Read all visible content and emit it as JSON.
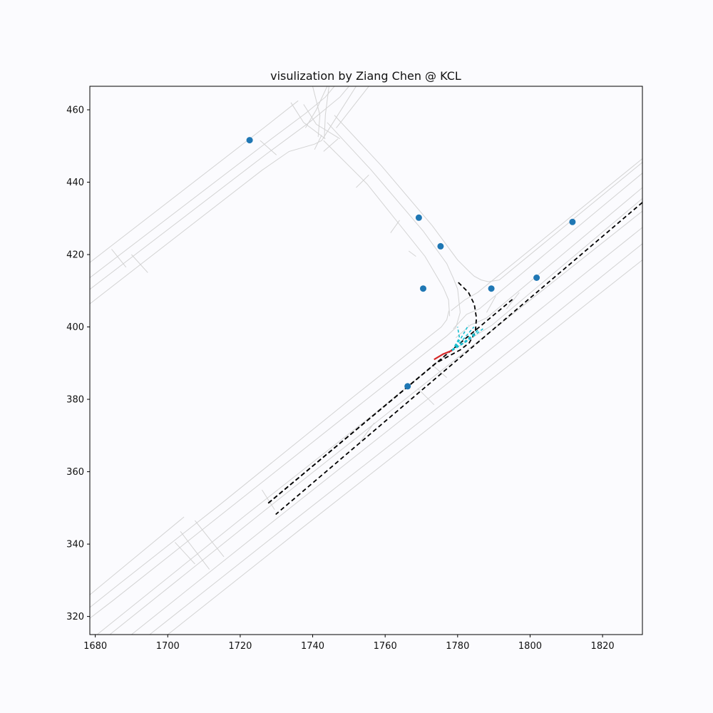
{
  "chart_data": {
    "type": "scatter",
    "title": "visulization by Ziang Chen @ KCL",
    "xlabel": "",
    "ylabel": "",
    "xlim": [
      1678.5,
      1831.0
    ],
    "ylim": [
      315.0,
      466.5
    ],
    "x_ticks": [
      1680,
      1700,
      1720,
      1740,
      1760,
      1780,
      1800,
      1820
    ],
    "y_ticks": [
      320,
      340,
      360,
      380,
      400,
      420,
      440,
      460
    ],
    "grid": false,
    "legend": "none",
    "colors": {
      "background": "#fbfbfe",
      "plot_background": "#fbfbfe",
      "lane": "#d3d3d3",
      "agent": "#1f77b4",
      "route": "#000000",
      "prediction": "#17becf",
      "history": "#d62728"
    },
    "agents": [
      {
        "x": 1722.6,
        "y": 451.6
      },
      {
        "x": 1769.3,
        "y": 430.2
      },
      {
        "x": 1775.3,
        "y": 422.3
      },
      {
        "x": 1770.5,
        "y": 410.6
      },
      {
        "x": 1789.3,
        "y": 410.6
      },
      {
        "x": 1801.8,
        "y": 413.6
      },
      {
        "x": 1811.7,
        "y": 429.0
      },
      {
        "x": 1766.2,
        "y": 383.6
      }
    ],
    "route_lines": [
      {
        "points": [
          [
            1780.2,
            412.3
          ],
          [
            1783.0,
            409.5
          ],
          [
            1784.6,
            406.3
          ],
          [
            1785.2,
            402.5
          ],
          [
            1784.9,
            398.6
          ],
          [
            1783.2,
            395.6
          ],
          [
            1780.8,
            393.7
          ],
          [
            1774.0,
            390.0
          ],
          [
            1727.6,
            351.2
          ]
        ]
      },
      {
        "points": [
          [
            1795.1,
            407.6
          ],
          [
            1727.6,
            351.2
          ]
        ]
      },
      {
        "points": [
          [
            1831.0,
            434.4
          ],
          [
            1729.8,
            348.2
          ]
        ]
      }
    ],
    "lane_lines": [
      {
        "points": [
          [
            1678.5,
            417.8
          ],
          [
            1726.5,
            455.0
          ],
          [
            1736.0,
            462.5
          ]
        ]
      },
      {
        "points": [
          [
            1678.5,
            413.6
          ],
          [
            1728.0,
            451.5
          ],
          [
            1738.0,
            459.0
          ],
          [
            1743.5,
            463.5
          ],
          [
            1746.0,
            466.5
          ]
        ]
      },
      {
        "points": [
          [
            1678.5,
            410.4
          ],
          [
            1727.0,
            447.6
          ],
          [
            1739.0,
            456.5
          ],
          [
            1747.5,
            463.5
          ],
          [
            1750.0,
            466.5
          ]
        ]
      },
      {
        "points": [
          [
            1678.5,
            406.4
          ],
          [
            1726.0,
            443.3
          ],
          [
            1733.5,
            448.5
          ],
          [
            1740.5,
            450.5
          ],
          [
            1742.5,
            451.5
          ],
          [
            1745.0,
            455.5
          ],
          [
            1752.0,
            466.5
          ]
        ]
      },
      {
        "points": [
          [
            1740.0,
            466.5
          ],
          [
            1742.0,
            458.5
          ],
          [
            1741.5,
            452.5
          ]
        ]
      },
      {
        "points": [
          [
            1744.5,
            466.5
          ],
          [
            1743.5,
            458.5
          ],
          [
            1743.2,
            452.0
          ]
        ]
      },
      {
        "points": [
          [
            1755.5,
            466.5
          ],
          [
            1746.5,
            455.0
          ]
        ]
      },
      {
        "points": [
          [
            1738.0,
            455.0
          ],
          [
            1741.0,
            460.0
          ],
          [
            1744.0,
            466.5
          ]
        ]
      },
      {
        "points": [
          [
            1747.5,
            452.0
          ],
          [
            1741.0,
            456.0
          ],
          [
            1737.5,
            461.5
          ]
        ]
      },
      {
        "points": [
          [
            1743.5,
            452.0
          ],
          [
            1737.5,
            456.5
          ],
          [
            1734.0,
            462.0
          ]
        ]
      },
      {
        "points": [
          [
            1743.0,
            448.5
          ],
          [
            1747.0,
            452.0
          ]
        ]
      },
      {
        "points": [
          [
            1744.0,
            456.5
          ],
          [
            1756.0,
            443.5
          ],
          [
            1770.5,
            426.5
          ],
          [
            1777.0,
            417.5
          ],
          [
            1778.8,
            413.5
          ],
          [
            1780.0,
            410.5
          ],
          [
            1780.7,
            404.0
          ],
          [
            1779.5,
            399.8
          ],
          [
            1777.0,
            397.5
          ],
          [
            1753.0,
            378.5
          ],
          [
            1716.5,
            349.5
          ],
          [
            1685.0,
            324.5
          ],
          [
            1678.5,
            319.5
          ]
        ]
      },
      {
        "points": [
          [
            1746.0,
            458.5
          ],
          [
            1759.0,
            444.5
          ],
          [
            1773.0,
            428.0
          ],
          [
            1780.0,
            418.5
          ],
          [
            1783.0,
            415.5
          ],
          [
            1784.6,
            414.0
          ],
          [
            1786.5,
            413.0
          ],
          [
            1788.5,
            412.5
          ],
          [
            1791.5,
            413.0
          ],
          [
            1831.0,
            445.5
          ]
        ]
      },
      {
        "points": [
          [
            1743.0,
            451.5
          ],
          [
            1755.0,
            439.5
          ],
          [
            1771.0,
            419.5
          ],
          [
            1776.0,
            411.0
          ],
          [
            1777.5,
            407.5
          ],
          [
            1777.8,
            403.0
          ]
        ]
      },
      {
        "points": [
          [
            1778.2,
            404.5
          ],
          [
            1782.0,
            407.5
          ],
          [
            1785.5,
            409.5
          ],
          [
            1831.0,
            446.5
          ]
        ]
      },
      {
        "points": [
          [
            1778.8,
            399.5
          ],
          [
            1782.5,
            403.5
          ],
          [
            1786.0,
            405.0
          ],
          [
            1831.0,
            442.5
          ]
        ]
      },
      {
        "points": [
          [
            1779.5,
            397.0
          ],
          [
            1783.5,
            400.5
          ],
          [
            1788.0,
            402.5
          ],
          [
            1831.0,
            438.5
          ]
        ]
      },
      {
        "points": [
          [
            1780.0,
            394.5
          ],
          [
            1789.5,
            400.5
          ],
          [
            1831.0,
            435.5
          ]
        ]
      },
      {
        "points": [
          [
            1678.5,
            322.5
          ],
          [
            1686.0,
            328.5
          ],
          [
            1714.5,
            351.0
          ],
          [
            1751.0,
            380.5
          ],
          [
            1775.5,
            400.0
          ],
          [
            1777.0,
            402.0
          ],
          [
            1777.6,
            404.5
          ]
        ]
      },
      {
        "points": [
          [
            1680.5,
            315.0
          ],
          [
            1721.5,
            348.0
          ],
          [
            1757.0,
            376.0
          ],
          [
            1779.5,
            394.5
          ]
        ]
      },
      {
        "points": [
          [
            1684.0,
            315.0
          ],
          [
            1727.0,
            349.5
          ],
          [
            1780.0,
            391.5
          ],
          [
            1831.0,
            432.0
          ]
        ]
      },
      {
        "points": [
          [
            1690.0,
            315.0
          ],
          [
            1730.0,
            347.0
          ],
          [
            1783.0,
            389.0
          ],
          [
            1831.0,
            427.5
          ]
        ]
      },
      {
        "points": [
          [
            1695.0,
            315.0
          ],
          [
            1733.5,
            345.5
          ],
          [
            1787.0,
            387.5
          ],
          [
            1831.0,
            423.0
          ]
        ]
      },
      {
        "points": [
          [
            1700.0,
            315.0
          ],
          [
            1736.5,
            344.0
          ],
          [
            1790.5,
            386.5
          ],
          [
            1831.0,
            418.5
          ]
        ]
      },
      {
        "points": [
          [
            1678.5,
            326.0
          ],
          [
            1704.5,
            347.5
          ]
        ]
      },
      {
        "points": [
          [
            1703.5,
            343.5
          ],
          [
            1711.5,
            333.0
          ]
        ]
      },
      {
        "points": [
          [
            1707.5,
            346.5
          ],
          [
            1715.5,
            336.5
          ]
        ]
      },
      {
        "points": [
          [
            1702.0,
            340.5
          ],
          [
            1707.5,
            334.5
          ]
        ]
      },
      {
        "points": [
          [
            1726.0,
            355.0
          ],
          [
            1729.5,
            349.5
          ]
        ]
      },
      {
        "points": [
          [
            1752.5,
            367.5
          ],
          [
            1757.0,
            373.5
          ]
        ]
      },
      {
        "points": [
          [
            1769.0,
            383.0
          ],
          [
            1773.5,
            378.5
          ]
        ]
      },
      {
        "points": [
          [
            1773.0,
            389.5
          ],
          [
            1777.0,
            386.0
          ]
        ]
      },
      {
        "points": [
          [
            1793.5,
            405.0
          ],
          [
            1797.0,
            409.5
          ]
        ]
      },
      {
        "points": [
          [
            1788.0,
            404.0
          ],
          [
            1790.5,
            408.5
          ]
        ]
      },
      {
        "points": [
          [
            1684.5,
            421.5
          ],
          [
            1688.5,
            416.5
          ]
        ]
      },
      {
        "points": [
          [
            1690.0,
            420.0
          ],
          [
            1694.5,
            415.0
          ]
        ]
      },
      {
        "points": [
          [
            1725.5,
            451.5
          ],
          [
            1730.0,
            447.5
          ]
        ]
      },
      {
        "points": [
          [
            1740.5,
            449.0
          ],
          [
            1742.5,
            453.0
          ]
        ]
      },
      {
        "points": [
          [
            1752.0,
            438.5
          ],
          [
            1755.5,
            442.0
          ]
        ]
      },
      {
        "points": [
          [
            1761.5,
            426.0
          ],
          [
            1764.0,
            429.5
          ]
        ]
      },
      {
        "points": [
          [
            1768.5,
            419.5
          ],
          [
            1766.5,
            421.0
          ]
        ]
      }
    ],
    "predictions": [
      {
        "points": [
          [
            1778.5,
            393.5
          ],
          [
            1781.0,
            397.0
          ],
          [
            1783.0,
            400.5
          ]
        ]
      },
      {
        "points": [
          [
            1778.5,
            393.5
          ],
          [
            1782.0,
            396.0
          ],
          [
            1785.5,
            399.0
          ]
        ]
      },
      {
        "points": [
          [
            1778.5,
            393.5
          ],
          [
            1783.0,
            396.5
          ],
          [
            1786.0,
            399.5
          ]
        ]
      },
      {
        "points": [
          [
            1778.5,
            393.5
          ],
          [
            1780.5,
            397.0
          ],
          [
            1780.0,
            400.0
          ]
        ]
      },
      {
        "points": [
          [
            1778.5,
            393.5
          ],
          [
            1781.5,
            396.5
          ],
          [
            1784.5,
            400.0
          ]
        ]
      },
      {
        "points": [
          [
            1778.5,
            393.5
          ],
          [
            1782.5,
            396.0
          ],
          [
            1787.0,
            399.5
          ]
        ]
      }
    ],
    "history": [
      {
        "points": [
          [
            1773.5,
            391.0
          ],
          [
            1776.0,
            392.5
          ],
          [
            1778.5,
            393.5
          ]
        ]
      }
    ]
  }
}
